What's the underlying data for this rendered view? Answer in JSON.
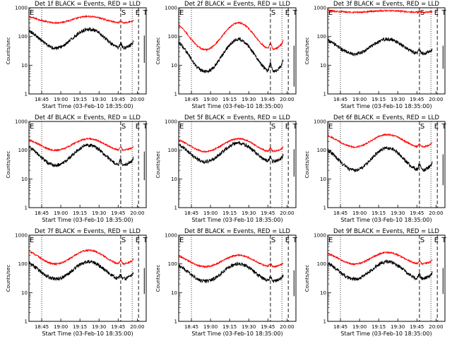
{
  "chart_data": {
    "type": "line",
    "y_scale": "log",
    "ylim": [
      1,
      1000
    ],
    "yticks": [
      "1",
      "10",
      "100",
      "1000"
    ],
    "ylabel": "Counts/sec",
    "xlabel": "Start Time (03-Feb-10 18:35:00)",
    "x_range_min": [
      0,
      92
    ],
    "x_ticks": [
      {
        "label": "18:45",
        "t": 10
      },
      {
        "label": "19:00",
        "t": 25
      },
      {
        "label": "19:15",
        "t": 40
      },
      {
        "label": "19:30",
        "t": 55
      },
      {
        "label": "19:45",
        "t": 70
      },
      {
        "label": "20:00",
        "t": 85
      }
    ],
    "markers": [
      {
        "label": "E",
        "t": 0
      },
      {
        "label": "S",
        "t": 72
      },
      {
        "label": "E",
        "t": 83
      },
      {
        "label": "T",
        "t": 89
      }
    ],
    "vlines": {
      "dotted": [
        10,
        81
      ],
      "dashed": [
        72,
        86
      ]
    },
    "series_colors": {
      "events": "#000000",
      "lld": "#ff0000"
    },
    "series": [
      {
        "name": "LLD",
        "color": "#ff0000"
      },
      {
        "name": "Events",
        "color": "#000000"
      }
    ],
    "panels": [
      {
        "title": "Det 1f BLACK = Events, RED = LLD",
        "red": {
          "a": 300,
          "b": 500
        },
        "black": {
          "a": 40,
          "b": 180
        }
      },
      {
        "title": "Det 2f BLACK = Events, RED = LLD",
        "red": {
          "a": 35,
          "b": 300
        },
        "black": {
          "a": 6,
          "b": 80
        }
      },
      {
        "title": "Det 3f BLACK = Events, RED = LLD",
        "red": {
          "a": 700,
          "b": 800
        },
        "black": {
          "a": 25,
          "b": 80
        }
      },
      {
        "title": "Det 4f BLACK = Events, RED = LLD",
        "red": {
          "a": 100,
          "b": 250
        },
        "black": {
          "a": 30,
          "b": 150
        }
      },
      {
        "title": "Det 5f BLACK = Events, RED = LLD",
        "red": {
          "a": 90,
          "b": 250
        },
        "black": {
          "a": 40,
          "b": 180
        }
      },
      {
        "title": "Det 6f BLACK = Events, RED = LLD",
        "red": {
          "a": 130,
          "b": 350
        },
        "black": {
          "a": 20,
          "b": 120
        }
      },
      {
        "title": "Det 7f BLACK = Events, RED = LLD",
        "red": {
          "a": 100,
          "b": 300
        },
        "black": {
          "a": 30,
          "b": 120
        }
      },
      {
        "title": "Det 8f BLACK = Events, RED = LLD",
        "red": {
          "a": 80,
          "b": 200
        },
        "black": {
          "a": 25,
          "b": 100
        }
      },
      {
        "title": "Det 9f BLACK = Events, RED = LLD",
        "red": {
          "a": 100,
          "b": 250
        },
        "black": {
          "a": 30,
          "b": 120
        }
      }
    ]
  }
}
